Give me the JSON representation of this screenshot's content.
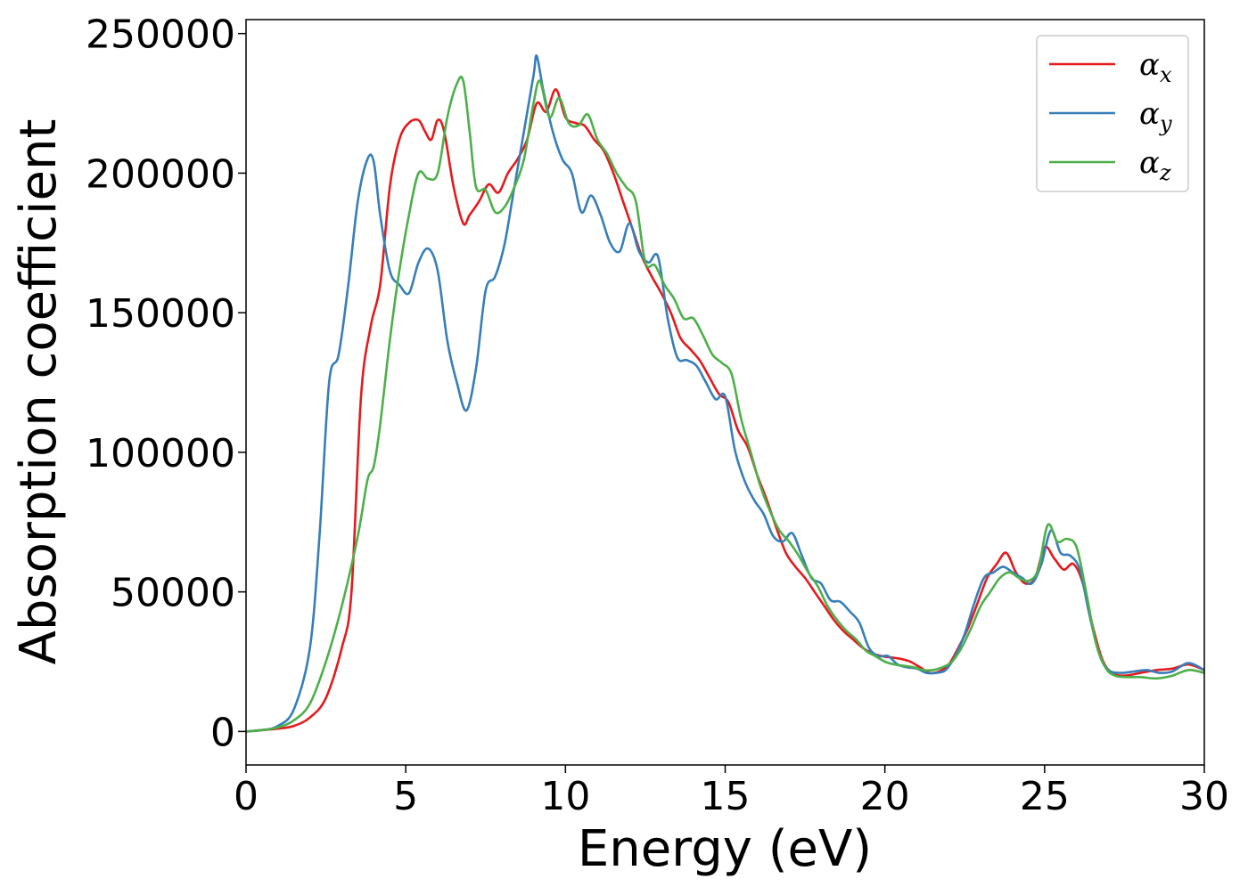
{
  "chart_data": {
    "type": "line",
    "title": "",
    "xlabel": "Energy (eV)",
    "ylabel": "Absorption coefficient",
    "xlim": [
      0,
      30
    ],
    "ylim": [
      -12000,
      255000
    ],
    "xticks": [
      0,
      5,
      10,
      15,
      20,
      25,
      30
    ],
    "yticks": [
      0,
      50000,
      100000,
      150000,
      200000,
      250000
    ],
    "grid": false,
    "legend": "top-right",
    "series": [
      {
        "name": "α",
        "subscript": "x",
        "color": "#e41a1c",
        "x": [
          0,
          0.5,
          1,
          1.5,
          2,
          2.5,
          3,
          3.3,
          3.6,
          3.9,
          4.2,
          4.5,
          4.8,
          5.1,
          5.4,
          5.6,
          5.8,
          6,
          6.2,
          6.5,
          6.8,
          7,
          7.3,
          7.6,
          7.9,
          8.2,
          8.5,
          8.8,
          9.1,
          9.4,
          9.7,
          10,
          10.3,
          10.6,
          10.9,
          11.2,
          11.5,
          11.8,
          12.1,
          12.4,
          12.7,
          13,
          13.3,
          13.6,
          13.9,
          14.2,
          14.5,
          14.8,
          15.1,
          15.4,
          15.7,
          16,
          16.3,
          16.6,
          16.9,
          17.2,
          17.5,
          17.8,
          18.1,
          18.4,
          18.7,
          19,
          19.3,
          19.6,
          19.9,
          20.2,
          20.5,
          20.8,
          21.1,
          21.4,
          21.7,
          22,
          22.3,
          22.6,
          22.9,
          23.2,
          23.5,
          23.8,
          24.1,
          24.4,
          24.7,
          25,
          25.3,
          25.6,
          25.9,
          26.2,
          26.5,
          26.8,
          27.1,
          27.5,
          28,
          28.5,
          29,
          29.5,
          30
        ],
        "y": [
          0,
          500,
          1000,
          2000,
          5000,
          12000,
          30000,
          50000,
          120000,
          145000,
          160000,
          195000,
          212000,
          218000,
          219000,
          215000,
          212000,
          219000,
          215000,
          195000,
          182000,
          185000,
          190000,
          196000,
          193000,
          200000,
          205000,
          212000,
          225000,
          222000,
          230000,
          220000,
          218000,
          217000,
          212000,
          208000,
          200000,
          190000,
          180000,
          170000,
          163000,
          157000,
          150000,
          141000,
          137000,
          133000,
          127000,
          121000,
          118000,
          108000,
          102000,
          92000,
          83000,
          73000,
          64000,
          59000,
          55000,
          50000,
          45000,
          40000,
          36000,
          33000,
          30000,
          28000,
          27000,
          26500,
          26000,
          25000,
          23000,
          21000,
          21500,
          24000,
          30000,
          37000,
          46000,
          55000,
          60000,
          64000,
          57000,
          53000,
          55000,
          66000,
          62000,
          58000,
          60000,
          53000,
          38000,
          26000,
          21000,
          20000,
          21000,
          22000,
          22500,
          24000,
          22000
        ]
      },
      {
        "name": "α",
        "subscript": "y",
        "color": "#377eb8",
        "x": [
          0,
          0.5,
          1,
          1.5,
          2,
          2.3,
          2.6,
          2.9,
          3.2,
          3.5,
          3.8,
          4,
          4.2,
          4.5,
          4.8,
          5.1,
          5.4,
          5.7,
          6,
          6.3,
          6.6,
          6.9,
          7.2,
          7.5,
          7.8,
          8.1,
          8.4,
          8.7,
          9,
          9.1,
          9.3,
          9.6,
          9.9,
          10.2,
          10.5,
          10.8,
          11.1,
          11.4,
          11.7,
          12,
          12.3,
          12.6,
          12.9,
          13.2,
          13.5,
          13.8,
          14.1,
          14.4,
          14.7,
          15,
          15.3,
          15.6,
          15.9,
          16.2,
          16.5,
          16.8,
          17.1,
          17.4,
          17.7,
          18,
          18.3,
          18.6,
          18.9,
          19.2,
          19.5,
          19.8,
          20.1,
          20.4,
          20.7,
          21,
          21.3,
          21.6,
          21.9,
          22.2,
          22.5,
          22.8,
          23.1,
          23.4,
          23.7,
          24,
          24.3,
          24.6,
          24.9,
          25.2,
          25.5,
          25.8,
          26.1,
          26.4,
          26.7,
          27,
          27.4,
          27.8,
          28.2,
          28.6,
          29,
          29.5,
          30
        ],
        "y": [
          0,
          500,
          2000,
          8000,
          30000,
          70000,
          125000,
          135000,
          160000,
          190000,
          205000,
          204000,
          185000,
          165000,
          160000,
          157000,
          168000,
          173000,
          165000,
          140000,
          125000,
          115000,
          130000,
          158000,
          163000,
          175000,
          195000,
          215000,
          235000,
          242000,
          230000,
          215000,
          205000,
          200000,
          186000,
          192000,
          185000,
          175000,
          172000,
          182000,
          172000,
          168000,
          170000,
          148000,
          134000,
          133000,
          131000,
          125000,
          119000,
          120000,
          101000,
          90000,
          83000,
          78000,
          70000,
          68000,
          71000,
          63000,
          55000,
          53000,
          47000,
          46500,
          43000,
          39000,
          30000,
          27000,
          27000,
          24000,
          23000,
          22500,
          21000,
          21000,
          22000,
          27000,
          35000,
          46000,
          55000,
          57000,
          59000,
          57000,
          55000,
          53000,
          60000,
          72000,
          64000,
          63000,
          58000,
          42000,
          28000,
          22000,
          21000,
          21500,
          22000,
          21000,
          21500,
          24500,
          22000
        ]
      },
      {
        "name": "α",
        "subscript": "z",
        "color": "#4daf4a",
        "x": [
          0,
          0.5,
          1,
          1.5,
          2,
          2.5,
          3,
          3.5,
          3.8,
          4,
          4.2,
          4.5,
          4.8,
          5.1,
          5.4,
          5.7,
          6,
          6.3,
          6.6,
          6.8,
          7,
          7.2,
          7.5,
          7.8,
          8.1,
          8.4,
          8.7,
          9,
          9.2,
          9.5,
          9.8,
          10.1,
          10.4,
          10.7,
          11,
          11.3,
          11.6,
          11.9,
          12.2,
          12.5,
          12.8,
          13.1,
          13.4,
          13.7,
          14,
          14.3,
          14.6,
          14.9,
          15.2,
          15.5,
          15.8,
          16.1,
          16.4,
          16.7,
          17,
          17.3,
          17.6,
          17.9,
          18.2,
          18.5,
          18.8,
          19.1,
          19.4,
          19.7,
          20,
          20.3,
          20.6,
          20.9,
          21.2,
          21.5,
          21.8,
          22.1,
          22.4,
          22.7,
          23,
          23.3,
          23.6,
          23.9,
          24.2,
          24.5,
          24.8,
          25.1,
          25.4,
          25.7,
          26,
          26.3,
          26.6,
          26.9,
          27.2,
          27.6,
          28,
          28.5,
          29,
          29.5,
          30
        ],
        "y": [
          0,
          500,
          1500,
          4000,
          10000,
          25000,
          45000,
          70000,
          90000,
          95000,
          110000,
          140000,
          165000,
          185000,
          200000,
          198000,
          200000,
          220000,
          232000,
          233000,
          215000,
          195000,
          194000,
          186000,
          188000,
          195000,
          205000,
          225000,
          233000,
          220000,
          227000,
          218000,
          217000,
          221000,
          212000,
          207000,
          200000,
          195000,
          190000,
          168000,
          167000,
          160000,
          155000,
          148000,
          148000,
          142000,
          135000,
          132000,
          128000,
          112000,
          100000,
          88000,
          79000,
          72000,
          68000,
          63000,
          57000,
          52000,
          45000,
          40000,
          36000,
          33000,
          29000,
          27000,
          25000,
          24000,
          23500,
          23000,
          22000,
          22000,
          23000,
          25000,
          30000,
          37000,
          45000,
          50000,
          55000,
          57000,
          55000,
          54000,
          58000,
          74000,
          68000,
          69000,
          66000,
          50000,
          32000,
          23000,
          20000,
          19500,
          19500,
          19000,
          20000,
          22000,
          21000
        ]
      }
    ]
  }
}
